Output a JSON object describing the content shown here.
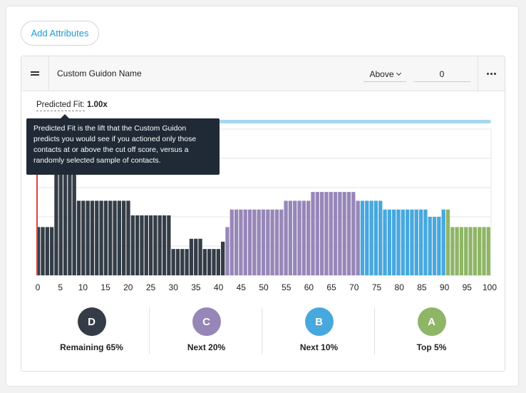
{
  "add_attributes_label": "Add Attributes",
  "card": {
    "title": "Custom Guidon Name",
    "comparator": "Above",
    "cutoff_value": "0",
    "drag_icon": "drag-handle-icon",
    "more_icon": "more-horizontal-icon"
  },
  "predicted_fit": {
    "label": "Predicted Fit:",
    "value": "1.00x",
    "tooltip": "Predicted Fit is the lift that the Custom Guidon predicts you would see if you actioned only those contacts at or above the cut off score, versus a randomly selected sample of contacts.",
    "progress_fraction": 1.0
  },
  "chart_data": {
    "type": "bar",
    "x_ticks": [
      "0",
      "5",
      "10",
      "15",
      "20",
      "25",
      "30",
      "35",
      "40",
      "45",
      "50",
      "55",
      "60",
      "65",
      "70",
      "75",
      "80",
      "85",
      "90",
      "95",
      "100"
    ],
    "xlim": [
      0,
      100
    ],
    "ylim": [
      0,
      10
    ],
    "cutoff_x": 0,
    "grid": true,
    "values": [
      3.3,
      3.3,
      3.3,
      3.3,
      7.7,
      7.7,
      7.7,
      7.7,
      7.7,
      5.1,
      5.1,
      5.1,
      5.1,
      5.1,
      5.1,
      5.1,
      5.1,
      5.1,
      5.1,
      5.1,
      5.1,
      4.1,
      4.1,
      4.1,
      4.1,
      4.1,
      4.1,
      4.1,
      4.1,
      4.1,
      1.8,
      1.8,
      1.8,
      1.8,
      2.5,
      2.5,
      2.5,
      1.8,
      1.8,
      1.8,
      1.8,
      2.3,
      3.3,
      4.5,
      4.5,
      4.5,
      4.5,
      4.5,
      4.5,
      4.5,
      4.5,
      4.5,
      4.5,
      4.5,
      4.5,
      5.1,
      5.1,
      5.1,
      5.1,
      5.1,
      5.1,
      5.7,
      5.7,
      5.7,
      5.7,
      5.7,
      5.7,
      5.7,
      5.7,
      5.7,
      5.7,
      5.1,
      5.1,
      5.1,
      5.1,
      5.1,
      5.1,
      4.5,
      4.5,
      4.5,
      4.5,
      4.5,
      4.5,
      4.5,
      4.5,
      4.5,
      4.5,
      4.0,
      4.0,
      4.0,
      4.5,
      4.5,
      3.3,
      3.3,
      3.3,
      3.3,
      3.3,
      3.3,
      3.3,
      3.3,
      3.3
    ],
    "segments": [
      {
        "name": "Remaining 65%",
        "from": 0,
        "to": 41,
        "color": "#343d47"
      },
      {
        "name": "Next 20%",
        "from": 41,
        "to": 71,
        "color": "#9786b8"
      },
      {
        "name": "Next 10%",
        "from": 71,
        "to": 90,
        "color": "#47a8de"
      },
      {
        "name": "Top 5%",
        "from": 90,
        "to": 100,
        "color": "#8fb567"
      }
    ]
  },
  "buckets": [
    {
      "letter": "D",
      "label": "Remaining 65%",
      "color": "#343d47"
    },
    {
      "letter": "C",
      "label": "Next 20%",
      "color": "#9786b8"
    },
    {
      "letter": "B",
      "label": "Next 10%",
      "color": "#47a8de"
    },
    {
      "letter": "A",
      "label": "Top 5%",
      "color": "#8fb567"
    }
  ]
}
